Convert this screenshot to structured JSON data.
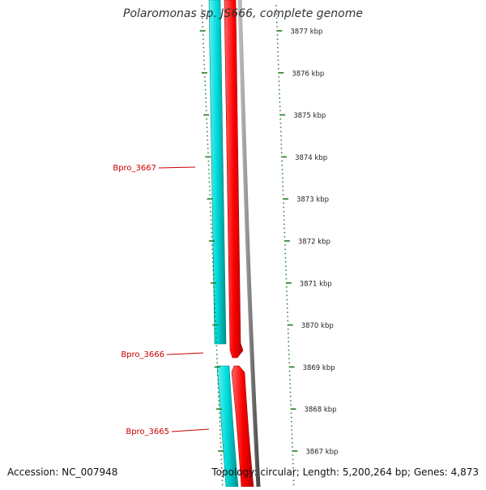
{
  "title": "Polaromonas sp. JS666, complete genome",
  "footer": {
    "accession": "Accession: NC_007948",
    "summary": "Topology: circular; Length: 5,200,264 bp; Genes: 4,873"
  },
  "ruler": {
    "labels": [
      "3877 kbp",
      "3876 kbp",
      "3875 kbp",
      "3874 kbp",
      "3873 kbp",
      "3872 kbp",
      "3871 kbp",
      "3870 kbp",
      "3869 kbp",
      "3868 kbp",
      "3867 kbp"
    ]
  },
  "genes": [
    {
      "label": "Bpro_3667"
    },
    {
      "label": "Bpro_3666"
    },
    {
      "label": "Bpro_3665"
    }
  ],
  "colors": {
    "forward_cds": "#00d2d2",
    "reverse_cds": "#ff0000",
    "backbone": "#7f7f7f",
    "tick": "#1e7f1e",
    "gene_label": "#cc0000"
  }
}
